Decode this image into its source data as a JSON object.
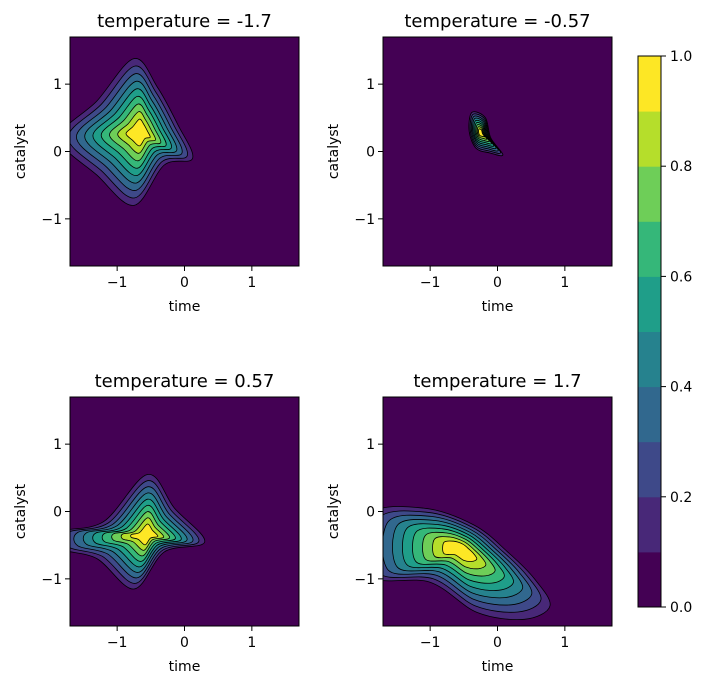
{
  "chart_data": {
    "type": "contour",
    "xlabel": "time",
    "ylabel": "catalyst",
    "xlim": [
      -1.7,
      1.7
    ],
    "ylim": [
      -1.7,
      1.7
    ],
    "xticks": [
      -1,
      0,
      1
    ],
    "yticks": [
      -1,
      0,
      1
    ],
    "xtick_labels": [
      "−1",
      "0",
      "1"
    ],
    "ytick_labels": [
      "−1",
      "0",
      "1"
    ],
    "colormap": "viridis",
    "levels": [
      0.0,
      0.1,
      0.2,
      0.3,
      0.4,
      0.5,
      0.6,
      0.7,
      0.8,
      0.9,
      1.0
    ],
    "colorbar": {
      "ticks": [
        0.0,
        0.2,
        0.4,
        0.6,
        0.8,
        1.0
      ],
      "tick_labels": [
        "0.0",
        "0.2",
        "0.4",
        "0.6",
        "0.8",
        "1.0"
      ],
      "colors": [
        "#440154",
        "#482878",
        "#3e4989",
        "#31688e",
        "#26828e",
        "#1f9e89",
        "#35b779",
        "#6ece58",
        "#b5de2b",
        "#fde725"
      ]
    },
    "panels": [
      {
        "title": "temperature = -1.7",
        "peak": [
          -0.65,
          0.28
        ],
        "extent_x": [
          -1.7,
          0.1
        ],
        "extent_y": [
          -0.8,
          1.4
        ],
        "shape": "diamond"
      },
      {
        "title": "temperature = -0.57",
        "peak": [
          -0.25,
          0.28
        ],
        "extent_x": [
          -0.4,
          0.05
        ],
        "extent_y": [
          -0.05,
          0.6
        ],
        "shape": "small-blob"
      },
      {
        "title": "temperature = 0.57",
        "peak": [
          -0.55,
          -0.35
        ],
        "extent_x": [
          -1.7,
          0.3
        ],
        "extent_y": [
          -1.15,
          0.55
        ],
        "shape": "diamond"
      },
      {
        "title": "temperature = 1.7",
        "peak": [
          -0.55,
          -0.55
        ],
        "extent_x": [
          -1.7,
          0.75
        ],
        "extent_y": [
          -1.6,
          0.0
        ],
        "shape": "elongated"
      }
    ]
  }
}
